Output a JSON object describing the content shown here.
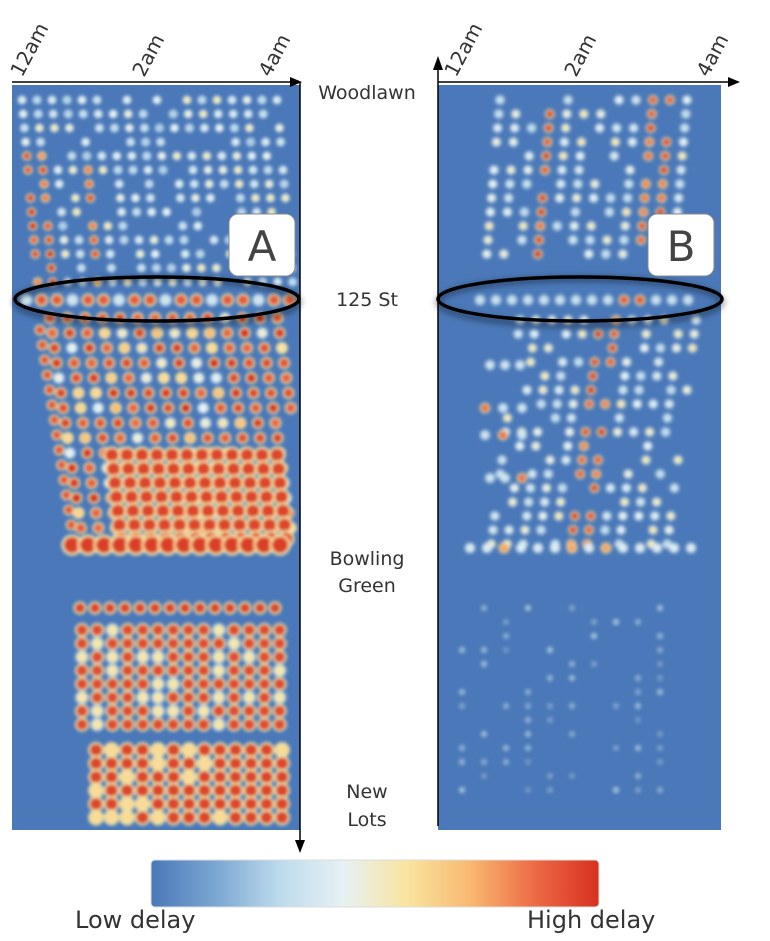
{
  "chart_data": [
    {
      "type": "heatmap",
      "panel_label": "A",
      "x_ticks": [
        "12am",
        "2am",
        "4am"
      ],
      "stations": [
        "Woodlawn",
        "125 St",
        "Bowling Green",
        "New Lots"
      ],
      "highlighted_station": "125 St",
      "pattern": "high delay below 125 St, dense toward Bowling Green and New Lots"
    },
    {
      "type": "heatmap",
      "panel_label": "B",
      "x_ticks": [
        "12am",
        "2am",
        "4am"
      ],
      "stations": [
        "Woodlawn",
        "125 St",
        "Bowling Green",
        "New Lots"
      ],
      "highlighted_station": "125 St",
      "pattern": "mostly low delay; a few diagonal high-delay streaks between Woodlawn and Bowling Green"
    }
  ],
  "station_labels": {
    "woodlawn": "Woodlawn",
    "st125": "125 St",
    "bowling_line1": "Bowling",
    "bowling_line2": "Green",
    "newlots_line1": "New",
    "newlots_line2": "Lots"
  },
  "time_ticks": [
    "12am",
    "2am",
    "4am"
  ],
  "panels": {
    "a": {
      "label": "A"
    },
    "b": {
      "label": "B"
    }
  },
  "legend": {
    "low": "Low delay",
    "high": "High delay",
    "colors": [
      "#4a78b8",
      "#7aa6d2",
      "#bcdaec",
      "#e6f1f3",
      "#f9e4a0",
      "#f8b870",
      "#ec6a45",
      "#d7301f"
    ]
  },
  "background_color": "#4a78b8"
}
